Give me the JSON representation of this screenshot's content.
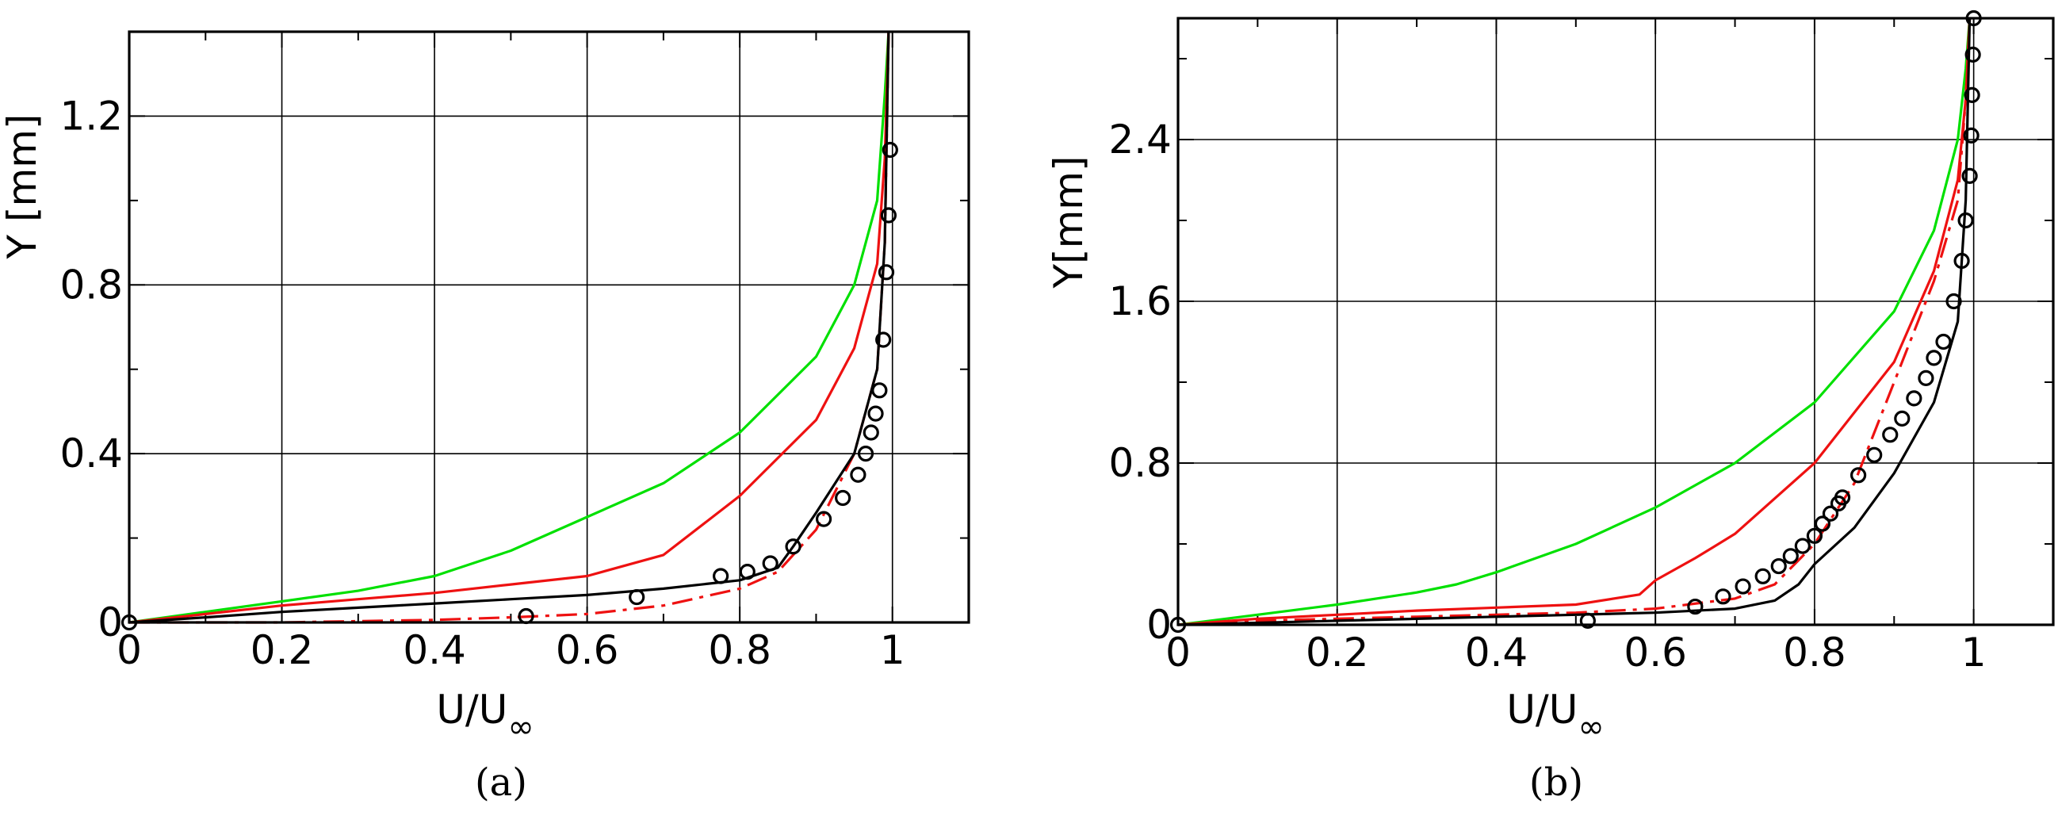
{
  "chart_data": [
    {
      "type": "line",
      "caption": "(a)",
      "xlabel": {
        "main": "U/U",
        "sub": "∞"
      },
      "ylabel": "Y [mm]",
      "xlim": [
        0,
        1.1
      ],
      "ylim": [
        0,
        1.4
      ],
      "xticks": [
        0,
        0.2,
        0.4,
        0.6,
        0.8,
        1
      ],
      "xtick_labels": [
        "0",
        "0.2",
        "0.4",
        "0.6",
        "0.8",
        "1"
      ],
      "yticks": [
        0,
        0.4,
        0.8,
        1.2
      ],
      "ytick_labels": [
        "0",
        "0.4",
        "0.8",
        "1.2"
      ],
      "grid": true,
      "series": [
        {
          "color": "#00e000",
          "style": "solid",
          "x": [
            0,
            0.1,
            0.2,
            0.3,
            0.4,
            0.5,
            0.6,
            0.7,
            0.8,
            0.9,
            0.95,
            0.98,
            0.99,
            0.995
          ],
          "y": [
            0,
            0.025,
            0.05,
            0.075,
            0.11,
            0.17,
            0.25,
            0.33,
            0.45,
            0.63,
            0.8,
            1.0,
            1.25,
            1.4
          ]
        },
        {
          "color": "#ee1111",
          "style": "solid",
          "x": [
            0,
            0.1,
            0.2,
            0.3,
            0.4,
            0.5,
            0.6,
            0.7,
            0.8,
            0.9,
            0.95,
            0.98,
            0.99,
            0.995
          ],
          "y": [
            0,
            0.02,
            0.04,
            0.055,
            0.07,
            0.09,
            0.11,
            0.16,
            0.3,
            0.48,
            0.65,
            0.85,
            1.1,
            1.4
          ]
        },
        {
          "color": "#ee1111",
          "style": "dashdot",
          "x": [
            0,
            0.1,
            0.2,
            0.3,
            0.4,
            0.5,
            0.6,
            0.7,
            0.8,
            0.85,
            0.9,
            0.95,
            0.98,
            0.99,
            0.995
          ],
          "y": [
            0,
            0.0,
            0.0,
            0.003,
            0.006,
            0.012,
            0.02,
            0.04,
            0.08,
            0.12,
            0.22,
            0.4,
            0.6,
            0.9,
            1.4
          ]
        },
        {
          "color": "#000000",
          "style": "solid",
          "x": [
            0,
            0.1,
            0.2,
            0.3,
            0.4,
            0.5,
            0.6,
            0.7,
            0.8,
            0.85,
            0.87,
            0.9,
            0.95,
            0.98,
            0.99,
            0.995
          ],
          "y": [
            0,
            0.012,
            0.025,
            0.035,
            0.045,
            0.055,
            0.065,
            0.08,
            0.1,
            0.13,
            0.18,
            0.26,
            0.4,
            0.6,
            0.9,
            1.4
          ]
        },
        {
          "color": "#000000",
          "style": "markers",
          "x": [
            0.0,
            0.52,
            0.665,
            0.775,
            0.81,
            0.84,
            0.87,
            0.91,
            0.935,
            0.955,
            0.965,
            0.972,
            0.978,
            0.983,
            0.988,
            0.992,
            0.995,
            0.997
          ],
          "y": [
            0.0,
            0.015,
            0.06,
            0.11,
            0.12,
            0.14,
            0.18,
            0.245,
            0.295,
            0.35,
            0.4,
            0.45,
            0.495,
            0.55,
            0.67,
            0.83,
            0.965,
            1.12
          ]
        }
      ]
    },
    {
      "type": "line",
      "caption": "(b)",
      "xlabel": {
        "main": "U/U",
        "sub": "∞"
      },
      "ylabel": "Y[mm]",
      "xlim": [
        0,
        1.1
      ],
      "ylim": [
        0,
        3.0
      ],
      "xticks": [
        0,
        0.2,
        0.4,
        0.6,
        0.8,
        1
      ],
      "xtick_labels": [
        "0",
        "0.2",
        "0.4",
        "0.6",
        "0.8",
        "1"
      ],
      "yticks": [
        0,
        0.8,
        1.6,
        2.4
      ],
      "ytick_labels": [
        "0",
        "0.8",
        "1.6",
        "2.4"
      ],
      "grid": true,
      "series": [
        {
          "color": "#00e000",
          "style": "solid",
          "x": [
            0,
            0.1,
            0.2,
            0.3,
            0.35,
            0.4,
            0.5,
            0.6,
            0.7,
            0.8,
            0.9,
            0.95,
            0.98,
            0.99,
            0.995
          ],
          "y": [
            0,
            0.05,
            0.1,
            0.16,
            0.2,
            0.26,
            0.4,
            0.58,
            0.8,
            1.1,
            1.55,
            1.95,
            2.4,
            2.75,
            3.0
          ]
        },
        {
          "color": "#ee1111",
          "style": "solid",
          "x": [
            0,
            0.1,
            0.2,
            0.3,
            0.4,
            0.5,
            0.58,
            0.6,
            0.65,
            0.7,
            0.8,
            0.9,
            0.95,
            0.98,
            0.99,
            0.995
          ],
          "y": [
            0,
            0.03,
            0.05,
            0.07,
            0.085,
            0.1,
            0.15,
            0.22,
            0.33,
            0.45,
            0.8,
            1.3,
            1.75,
            2.2,
            2.6,
            3.0
          ]
        },
        {
          "color": "#ee1111",
          "style": "dashdot",
          "x": [
            0,
            0.1,
            0.2,
            0.3,
            0.4,
            0.5,
            0.6,
            0.7,
            0.75,
            0.8,
            0.85,
            0.9,
            0.95,
            0.98,
            0.99,
            0.995
          ],
          "y": [
            0,
            0.02,
            0.03,
            0.04,
            0.05,
            0.06,
            0.08,
            0.13,
            0.2,
            0.4,
            0.7,
            1.2,
            1.7,
            2.1,
            2.6,
            3.0
          ]
        },
        {
          "color": "#000000",
          "style": "solid",
          "x": [
            0,
            0.1,
            0.2,
            0.3,
            0.4,
            0.5,
            0.6,
            0.7,
            0.75,
            0.78,
            0.8,
            0.85,
            0.9,
            0.95,
            0.98,
            0.99,
            0.995
          ],
          "y": [
            0,
            0.01,
            0.02,
            0.03,
            0.04,
            0.05,
            0.06,
            0.08,
            0.12,
            0.2,
            0.3,
            0.48,
            0.75,
            1.1,
            1.5,
            2.1,
            3.0
          ]
        },
        {
          "color": "#000000",
          "style": "markers",
          "x": [
            0.0,
            0.515,
            0.65,
            0.685,
            0.71,
            0.735,
            0.755,
            0.77,
            0.785,
            0.8,
            0.81,
            0.82,
            0.83,
            0.835,
            0.855,
            0.875,
            0.895,
            0.91,
            0.925,
            0.94,
            0.95,
            0.962,
            0.975,
            0.985,
            0.99,
            0.995,
            0.997,
            0.998,
            0.999,
            1.0
          ],
          "y": [
            0.0,
            0.02,
            0.09,
            0.14,
            0.19,
            0.24,
            0.29,
            0.34,
            0.39,
            0.44,
            0.5,
            0.55,
            0.6,
            0.63,
            0.74,
            0.84,
            0.94,
            1.02,
            1.12,
            1.22,
            1.32,
            1.4,
            1.6,
            1.8,
            2.0,
            2.22,
            2.42,
            2.62,
            2.82,
            3.0
          ]
        }
      ]
    }
  ]
}
